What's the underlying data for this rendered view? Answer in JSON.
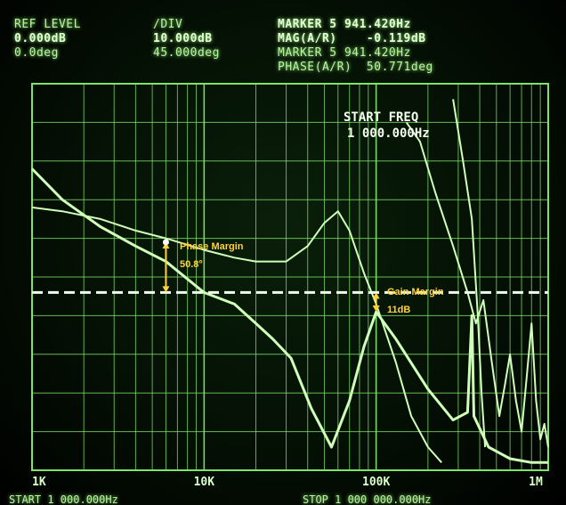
{
  "header": {
    "ref_level_label": "REF LEVEL",
    "ref_level_mag": "0.000dB",
    "ref_level_phase": "0.0deg",
    "div_label": "/DIV",
    "div_mag": "10.000dB",
    "div_phase": "45.000deg",
    "marker_line1": "MARKER 5 941.420Hz",
    "marker_line2": "MAG(A/R)    -0.119dB",
    "marker_line3": "MARKER 5 941.420Hz",
    "marker_line4": "PHASE(A/R)  50.771deg"
  },
  "overlay": {
    "start_freq_label": "START FREQ",
    "start_freq_value": "1 000.000Hz"
  },
  "annotations": {
    "phase_margin_label": "Phase Margin",
    "phase_margin_value": "50.8°",
    "gain_margin_label": "Gain Margin",
    "gain_margin_value": "11dB"
  },
  "footer": {
    "start": "START 1 000.000Hz",
    "stop": "STOP 1 000 000.000Hz"
  },
  "chart_data": {
    "type": "line",
    "x_scale": "log",
    "xlim": [
      1000,
      1000000
    ],
    "x_tick_labels": [
      "1K",
      "10K",
      "100K",
      "1M"
    ],
    "x_ticks": [
      1000,
      10000,
      100000,
      1000000
    ],
    "grid": true,
    "colors": {
      "trace": "#cfffb8",
      "grid": "#7fe36a",
      "annotation": "#ffd23a"
    },
    "series": [
      {
        "values": [
          [
            1000,
            78
          ],
          [
            1500,
            70
          ],
          [
            2500,
            63
          ],
          [
            4000,
            58
          ],
          [
            6000,
            54
          ],
          [
            10000,
            46
          ],
          [
            15000,
            43
          ],
          [
            20000,
            38
          ],
          [
            25000,
            34
          ],
          [
            32000,
            29
          ],
          [
            42000,
            16
          ],
          [
            55000,
            6
          ],
          [
            70000,
            18
          ],
          [
            85000,
            32
          ],
          [
            100000,
            41
          ],
          [
            130000,
            34
          ],
          [
            200000,
            21
          ],
          [
            280000,
            13
          ],
          [
            340000,
            15
          ],
          [
            360000,
            40
          ],
          [
            370000,
            14
          ],
          [
            450000,
            6
          ],
          [
            600000,
            3
          ],
          [
            800000,
            2
          ],
          [
            1000000,
            2
          ]
        ]
      },
      {
        "values": [
          [
            1000,
            68
          ],
          [
            1500,
            67
          ],
          [
            2500,
            65
          ],
          [
            4000,
            62
          ],
          [
            6000,
            60
          ],
          [
            10000,
            57
          ],
          [
            15000,
            55
          ],
          [
            20000,
            54
          ],
          [
            30000,
            54
          ],
          [
            40000,
            58
          ],
          [
            50000,
            64
          ],
          [
            60000,
            67
          ],
          [
            70000,
            62
          ],
          [
            85000,
            51
          ],
          [
            100000,
            43
          ],
          [
            130000,
            28
          ],
          [
            160000,
            14
          ],
          [
            200000,
            6
          ],
          [
            240000,
            2
          ]
        ]
      },
      {
        "values": [
          [
            150000,
            90
          ],
          [
            180000,
            85
          ],
          [
            220000,
            72
          ],
          [
            280000,
            58
          ],
          [
            340000,
            46
          ],
          [
            380000,
            38
          ],
          [
            420000,
            44
          ],
          [
            470000,
            28
          ],
          [
            520000,
            14
          ],
          [
            560000,
            22
          ],
          [
            600000,
            30
          ],
          [
            650000,
            18
          ],
          [
            700000,
            10
          ],
          [
            750000,
            24
          ],
          [
            800000,
            38
          ],
          [
            850000,
            18
          ],
          [
            900000,
            8
          ],
          [
            950000,
            12
          ],
          [
            1000000,
            6
          ]
        ]
      },
      {
        "values": [
          [
            280000,
            96
          ],
          [
            320000,
            80
          ],
          [
            360000,
            65
          ],
          [
            390000,
            40
          ],
          [
            410000,
            20
          ],
          [
            430000,
            6
          ]
        ]
      }
    ],
    "reference_line": {
      "y": 46,
      "style": "dashed"
    },
    "markers": [
      {
        "name": "phase_margin",
        "x": 6000,
        "y_top": 59,
        "y_bottom": 46
      },
      {
        "name": "gain_margin",
        "x": 100000,
        "y_top": 46,
        "y_bottom": 41
      }
    ]
  }
}
